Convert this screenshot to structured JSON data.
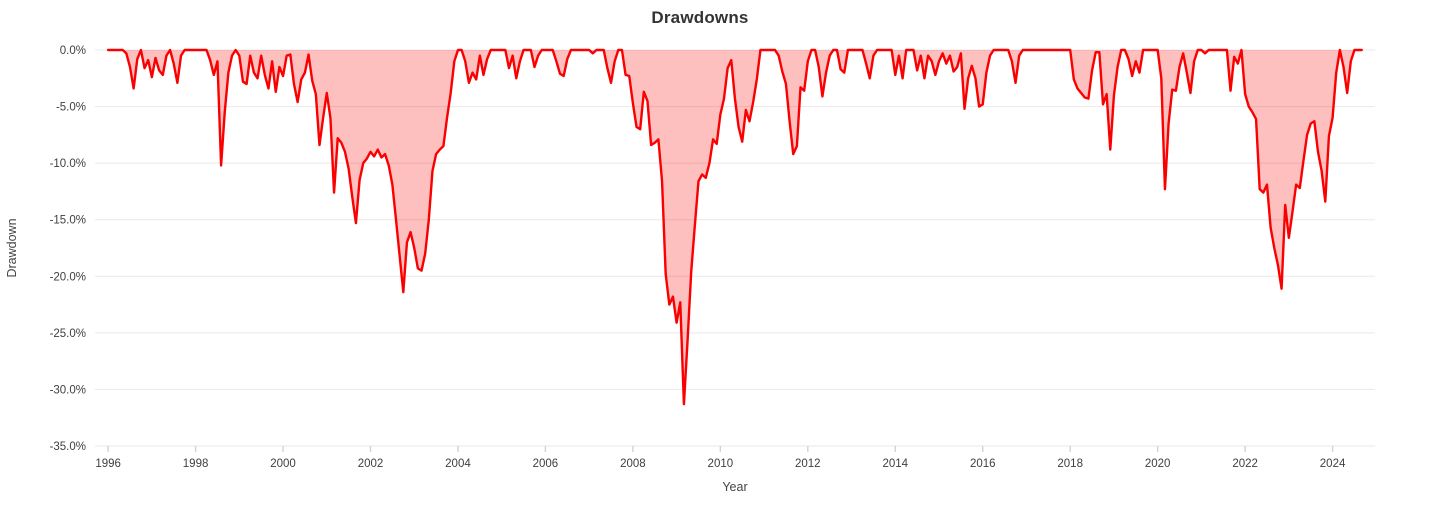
{
  "chart": {
    "title": "Drawdowns",
    "x_label": "Year",
    "y_label": "Drawdown"
  },
  "chart_data": {
    "type": "area",
    "title": "Drawdowns",
    "xlabel": "Year",
    "ylabel": "Drawdown",
    "series_name": "Drawdown",
    "y_unit": "percent",
    "x_unit": "decimal-year, monthly points",
    "x_start": 1996.0,
    "x_step": 0.0833333,
    "x_range": [
      1995.7,
      2024.97
    ],
    "ylim": [
      -35,
      0
    ],
    "grid": true,
    "legend_position": "none",
    "x_ticks": [
      1996,
      1998,
      2000,
      2002,
      2004,
      2006,
      2008,
      2010,
      2012,
      2014,
      2016,
      2018,
      2020,
      2022,
      2024
    ],
    "y_ticks": [
      {
        "value": 0,
        "label": "0.0%"
      },
      {
        "value": -5,
        "label": "-5.0%"
      },
      {
        "value": -10,
        "label": "-10.0%"
      },
      {
        "value": -15,
        "label": "-15.0%"
      },
      {
        "value": -20,
        "label": "-20.0%"
      },
      {
        "value": -25,
        "label": "-25.0%"
      },
      {
        "value": -30,
        "label": "-30.0%"
      },
      {
        "value": -35,
        "label": "-35.0%"
      }
    ],
    "colors": {
      "line": "#fa0000",
      "fill": "rgba(250,0,0,0.25)",
      "grid": "#e9e9e9",
      "tick_mark": "#c9d5e0",
      "tick_text": "#3f3f3f",
      "title_text": "#333333"
    },
    "values": [
      0,
      0,
      0,
      0,
      0,
      -0.3,
      -1.5,
      -3.4,
      -0.8,
      0,
      -1.6,
      -0.9,
      -2.4,
      -0.7,
      -1.8,
      -2.2,
      -0.5,
      0,
      -1.2,
      -2.9,
      -0.5,
      0,
      0,
      0,
      0,
      0,
      0,
      0,
      -0.9,
      -2.2,
      -1.0,
      -10.2,
      -5.5,
      -2.0,
      -0.5,
      0,
      -0.5,
      -2.8,
      -3.0,
      -0.5,
      -2.0,
      -2.5,
      -0.5,
      -2.2,
      -3.4,
      -1.0,
      -3.7,
      -1.5,
      -2.3,
      -0.5,
      -0.4,
      -3.0,
      -4.6,
      -2.6,
      -2.0,
      -0.4,
      -2.7,
      -3.9,
      -8.4,
      -6.0,
      -3.8,
      -6.0,
      -12.6,
      -7.8,
      -8.2,
      -9.0,
      -10.5,
      -13.0,
      -15.3,
      -11.5,
      -10.0,
      -9.6,
      -9.0,
      -9.4,
      -8.8,
      -9.5,
      -9.2,
      -10.2,
      -11.9,
      -15.0,
      -18.2,
      -21.4,
      -17.0,
      -16.1,
      -17.5,
      -19.3,
      -19.5,
      -18.0,
      -15.0,
      -10.7,
      -9.2,
      -8.8,
      -8.5,
      -6.0,
      -3.8,
      -1.0,
      0,
      0,
      -1.0,
      -2.9,
      -2.0,
      -2.6,
      -0.5,
      -2.2,
      -0.8,
      0,
      0,
      0,
      0,
      0,
      -1.6,
      -0.5,
      -2.5,
      -1.0,
      0,
      0,
      0,
      -1.5,
      -0.5,
      0,
      0,
      0,
      0,
      -1.0,
      -2.1,
      -2.3,
      -0.8,
      0,
      0,
      0,
      0,
      0,
      0,
      -0.3,
      0,
      0,
      0,
      -1.6,
      -2.9,
      -1.0,
      0,
      0,
      -2.2,
      -2.3,
      -4.7,
      -6.8,
      -7.0,
      -3.7,
      -4.5,
      -8.4,
      -8.2,
      -7.9,
      -11.6,
      -19.8,
      -22.5,
      -21.8,
      -24.1,
      -22.3,
      -31.3,
      -25.7,
      -19.6,
      -15.5,
      -11.6,
      -11.0,
      -11.3,
      -10.0,
      -7.9,
      -8.3,
      -5.7,
      -4.3,
      -1.6,
      -0.9,
      -4.3,
      -6.8,
      -8.1,
      -5.3,
      -6.3,
      -4.6,
      -2.6,
      0,
      0,
      0,
      0,
      0,
      -0.5,
      -1.9,
      -3.0,
      -6.3,
      -9.2,
      -8.5,
      -3.3,
      -3.6,
      -1.0,
      0,
      0,
      -1.5,
      -4.1,
      -2.0,
      -0.5,
      0,
      0,
      -1.7,
      -2.0,
      0,
      0,
      0,
      0,
      0,
      -1.2,
      -2.5,
      -0.5,
      0,
      0,
      0,
      0,
      0,
      -2.2,
      -0.5,
      -2.5,
      0,
      0,
      0,
      -1.8,
      -0.5,
      -2.5,
      -0.5,
      -1.0,
      -2.2,
      -1.0,
      -0.3,
      -1.2,
      -0.5,
      -1.9,
      -1.5,
      -0.3,
      -5.2,
      -2.5,
      -1.4,
      -2.5,
      -5.0,
      -4.8,
      -2.0,
      -0.5,
      0,
      0,
      0,
      0,
      0,
      -1.0,
      -2.9,
      -0.5,
      0,
      0,
      0,
      0,
      0,
      0,
      0,
      0,
      0,
      0,
      0,
      0,
      0,
      0,
      -2.6,
      -3.4,
      -3.8,
      -4.2,
      -4.3,
      -1.8,
      -0.2,
      -0.2,
      -4.8,
      -3.9,
      -8.8,
      -4.0,
      -1.5,
      0,
      0,
      -0.8,
      -2.3,
      -1.0,
      -2.0,
      0,
      0,
      0,
      0,
      0,
      -2.5,
      -12.3,
      -6.5,
      -3.5,
      -3.6,
      -1.5,
      -0.3,
      -2.0,
      -3.8,
      -1.0,
      0,
      0,
      -0.3,
      0,
      0,
      0,
      0,
      0,
      0,
      -3.6,
      -0.6,
      -1.2,
      0,
      -3.9,
      -5.0,
      -5.5,
      -6.1,
      -12.3,
      -12.6,
      -11.9,
      -15.7,
      -17.5,
      -19.0,
      -21.1,
      -13.7,
      -16.6,
      -14.3,
      -11.9,
      -12.2,
      -9.8,
      -7.5,
      -6.5,
      -6.3,
      -9.0,
      -10.7,
      -13.4,
      -7.6,
      -6.0,
      -2.0,
      0,
      -1.5,
      -3.8,
      -1.0,
      0,
      0,
      0
    ]
  }
}
